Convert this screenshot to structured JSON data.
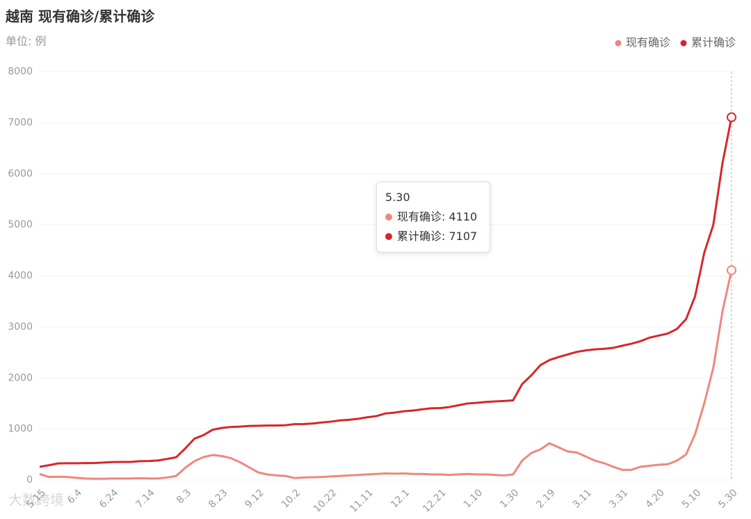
{
  "chart_data": {
    "type": "line",
    "title": "越南 现有确诊/累计确诊",
    "subtitle": "单位: 例",
    "categories": [
      "5.15",
      null,
      null,
      null,
      "6.4",
      null,
      null,
      null,
      "6.24",
      null,
      null,
      null,
      "7.14",
      null,
      null,
      null,
      "8.3",
      null,
      null,
      null,
      "8.23",
      null,
      null,
      null,
      "9.12",
      null,
      null,
      null,
      "10.2",
      null,
      null,
      null,
      "10.22",
      null,
      null,
      null,
      "11.11",
      null,
      null,
      null,
      "12.1",
      null,
      null,
      null,
      "12.21",
      null,
      null,
      null,
      "1.10",
      null,
      null,
      null,
      "1.30",
      null,
      null,
      null,
      "2.19",
      null,
      null,
      null,
      "3.11",
      null,
      null,
      null,
      "3.31",
      null,
      null,
      null,
      "4.20",
      null,
      null,
      null,
      "5.10",
      null,
      null,
      null,
      "5.30"
    ],
    "series": [
      {
        "name": "现有确诊",
        "color": "#f0877d",
        "values": [
          120,
          60,
          65,
          60,
          45,
          30,
          25,
          25,
          30,
          30,
          30,
          35,
          30,
          30,
          50,
          80,
          240,
          370,
          450,
          490,
          470,
          430,
          350,
          250,
          150,
          110,
          90,
          80,
          40,
          50,
          55,
          60,
          70,
          80,
          90,
          100,
          110,
          120,
          130,
          125,
          130,
          120,
          120,
          110,
          110,
          100,
          110,
          120,
          110,
          110,
          100,
          90,
          110,
          380,
          530,
          600,
          720,
          640,
          560,
          540,
          460,
          380,
          330,
          260,
          200,
          200,
          260,
          280,
          300,
          310,
          380,
          500,
          900,
          1500,
          2200,
          3300,
          4110
        ]
      },
      {
        "name": "累计确诊",
        "color": "#d7262b",
        "values": [
          260,
          290,
          325,
          328,
          328,
          332,
          334,
          342,
          352,
          355,
          355,
          369,
          373,
          383,
          413,
          446,
          620,
          810,
          880,
          985,
          1020,
          1040,
          1046,
          1060,
          1063,
          1068,
          1068,
          1074,
          1095,
          1097,
          1107,
          1128,
          1144,
          1169,
          1180,
          1200,
          1230,
          1253,
          1305,
          1321,
          1347,
          1361,
          1385,
          1405,
          1410,
          1430,
          1465,
          1500,
          1513,
          1530,
          1540,
          1548,
          1560,
          1880,
          2050,
          2250,
          2350,
          2410,
          2460,
          2510,
          2540,
          2560,
          2570,
          2590,
          2630,
          2670,
          2720,
          2790,
          2830,
          2870,
          2960,
          3150,
          3600,
          4450,
          5000,
          6200,
          7107
        ]
      }
    ],
    "ylim": [
      0,
      8000
    ],
    "yticks": [
      0,
      1000,
      2000,
      3000,
      4000,
      5000,
      6000,
      7000,
      8000
    ],
    "grid": true,
    "legend": "top-right",
    "tooltip": {
      "entries": [
        "现有确诊: 4110",
        "累计确诊: 7107"
      ]
    },
    "watermark": "大数跨境"
  }
}
